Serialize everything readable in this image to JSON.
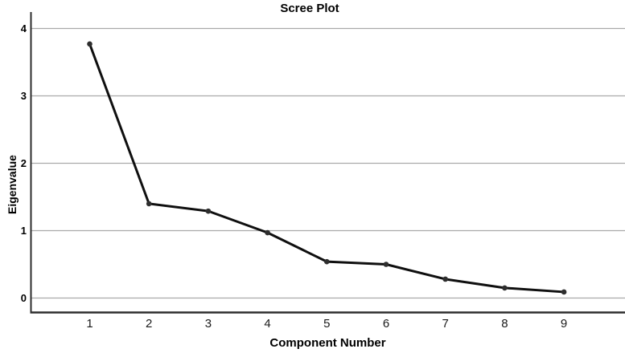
{
  "chart_data": {
    "type": "line",
    "title": "Scree Plot",
    "xlabel": "Component Number",
    "ylabel": "Eigenvalue",
    "x": [
      1,
      2,
      3,
      4,
      5,
      6,
      7,
      8,
      9
    ],
    "series": [
      {
        "name": "Eigenvalue",
        "values": [
          3.77,
          1.4,
          1.29,
          0.97,
          0.54,
          0.5,
          0.28,
          0.15,
          0.09
        ]
      }
    ],
    "yticks": [
      0,
      1,
      2,
      3,
      4
    ],
    "ylim": [
      -0.21,
      4.24
    ],
    "grid": "horizontal-only",
    "legend": "none",
    "marker": "filled-circle",
    "colors": {
      "background": "#ffffff",
      "line": "#0f0f0f",
      "marker": "#2e2e2e",
      "gridline": "#aaaaaa",
      "axis": "#2d2d2d",
      "text": "#000000"
    }
  }
}
